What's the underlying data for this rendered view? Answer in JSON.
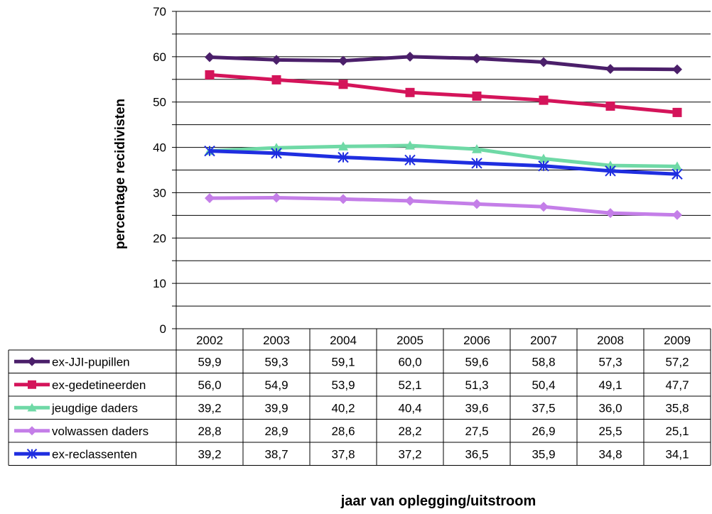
{
  "chart_data": {
    "type": "line",
    "categories": [
      "2002",
      "2003",
      "2004",
      "2005",
      "2006",
      "2007",
      "2008",
      "2009"
    ],
    "ylabel": "percentage recidivisten",
    "xlabel": "jaar van oplegging/uitstroom",
    "ylim": [
      0,
      70
    ],
    "yticks": [
      0,
      10,
      20,
      30,
      40,
      50,
      60,
      70
    ],
    "grid": true,
    "legend_placement": "data-table-left",
    "series": [
      {
        "name": "ex-JJI-pupillen",
        "color": "#4b1f6a",
        "marker": "diamond",
        "values": [
          59.9,
          59.3,
          59.1,
          60.0,
          59.6,
          58.8,
          57.3,
          57.2
        ],
        "labels": [
          "59,9",
          "59,3",
          "59,1",
          "60,0",
          "59,6",
          "58,8",
          "57,3",
          "57,2"
        ]
      },
      {
        "name": "ex-gedetineerden",
        "color": "#d4145a",
        "marker": "square",
        "values": [
          56.0,
          54.9,
          53.9,
          52.1,
          51.3,
          50.4,
          49.1,
          47.7
        ],
        "labels": [
          "56,0",
          "54,9",
          "53,9",
          "52,1",
          "51,3",
          "50,4",
          "49,1",
          "47,7"
        ]
      },
      {
        "name": "jeugdige daders",
        "color": "#6fd9a6",
        "marker": "triangle",
        "values": [
          39.2,
          39.9,
          40.2,
          40.4,
          39.6,
          37.5,
          36.0,
          35.8
        ],
        "labels": [
          "39,2",
          "39,9",
          "40,2",
          "40,4",
          "39,6",
          "37,5",
          "36,0",
          "35,8"
        ]
      },
      {
        "name": "volwassen daders",
        "color": "#c47ee8",
        "marker": "diamond",
        "values": [
          28.8,
          28.9,
          28.6,
          28.2,
          27.5,
          26.9,
          25.5,
          25.1
        ],
        "labels": [
          "28,8",
          "28,9",
          "28,6",
          "28,2",
          "27,5",
          "26,9",
          "25,5",
          "25,1"
        ]
      },
      {
        "name": "ex-reclassenten",
        "color": "#1f2ee0",
        "marker": "star",
        "values": [
          39.2,
          38.7,
          37.8,
          37.2,
          36.5,
          35.9,
          34.8,
          34.1
        ],
        "labels": [
          "39,2",
          "38,7",
          "37,8",
          "37,2",
          "36,5",
          "35,9",
          "34,8",
          "34,1"
        ]
      }
    ]
  }
}
